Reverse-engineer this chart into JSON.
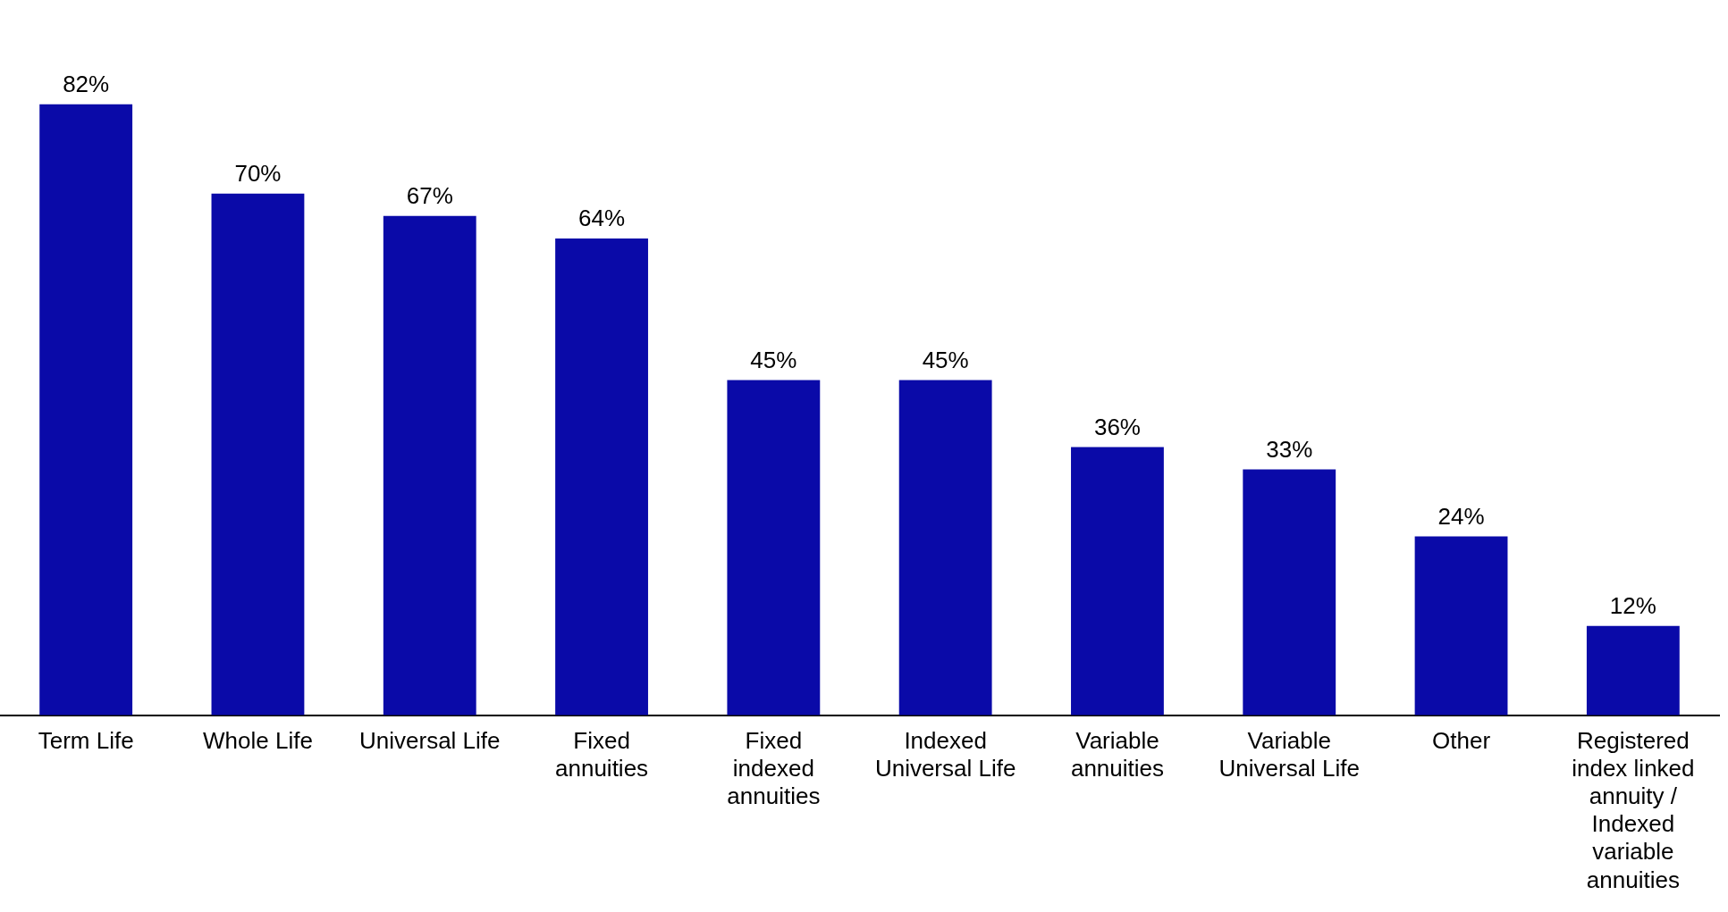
{
  "chart_data": {
    "type": "bar",
    "categories": [
      "Term Life",
      "Whole Life",
      "Universal Life",
      "Fixed annuities",
      "Fixed indexed annuities",
      "Indexed Universal Life",
      "Variable annuities",
      "Variable Universal Life",
      "Other",
      "Registered index linked annuity / Indexed variable annuities"
    ],
    "values": [
      82,
      70,
      67,
      64,
      45,
      45,
      36,
      33,
      24,
      12
    ],
    "value_labels": [
      "82%",
      "70%",
      "67%",
      "64%",
      "45%",
      "45%",
      "36%",
      "33%",
      "24%",
      "12%"
    ],
    "color": "#0a0aa8",
    "grid": false,
    "legend": false
  }
}
